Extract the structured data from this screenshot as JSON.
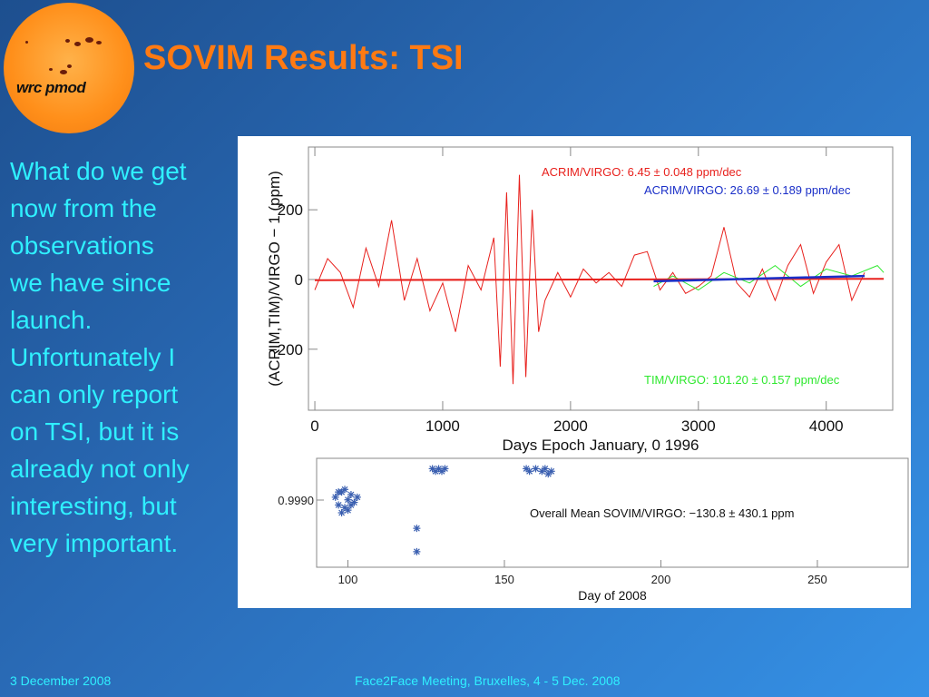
{
  "slide": {
    "title": "SOVIM Results: TSI",
    "logo_text": "wrc pmod",
    "body_lines": [
      "What do we get",
      "now from the",
      "observations",
      "we have since",
      "launch.",
      "Unfortunately I",
      "can only report",
      "on TSI, but it is",
      "already not only",
      "interesting, but",
      "very important."
    ],
    "footer_left": "3 December 2008",
    "footer_center": "Face2Face Meeting, Bruxelles, 4 - 5 Dec. 2008"
  },
  "colors": {
    "title": "#ff7a12",
    "body": "#2ff0ff",
    "acrim_red": "#e8201c",
    "acrim_blue": "#1a2fc8",
    "tim_green": "#2ee82e",
    "sovim_points": "#3a5fb0"
  },
  "chart_data": [
    {
      "type": "line",
      "xlabel": "Days Epoch January, 0 1996",
      "ylabel": "(ACRIM,TIM)/VIRGO − 1 (ppm)",
      "xlim": [
        -50,
        4520
      ],
      "ylim": [
        -375,
        380
      ],
      "x_ticks": [
        0,
        1000,
        2000,
        3000,
        4000
      ],
      "x_tick_labels": [
        "0",
        "1000",
        "2000",
        "3000",
        "4000"
      ],
      "y_ticks": [
        200,
        0,
        -200
      ],
      "y_tick_labels": [
        "200",
        "0",
        "−200"
      ],
      "annotations": [
        {
          "text": "ACRIM/VIRGO:   6.45 ± 0.048 ppm/dec",
          "color": "red"
        },
        {
          "text": "ACRIM/VIRGO:  26.69 ± 0.189 ppm/dec",
          "color": "blue"
        },
        {
          "text": "TIM/VIRGO: 101.20 ± 0.157 ppm/dec",
          "color": "green"
        }
      ],
      "series": [
        {
          "color": "red",
          "x": [
            0,
            100,
            200,
            300,
            400,
            500,
            600,
            700,
            800,
            900,
            1000,
            1100,
            1200,
            1300,
            1400,
            1450,
            1500,
            1550,
            1600,
            1650,
            1700,
            1750,
            1800,
            1900,
            2000,
            2100,
            2200,
            2300,
            2400,
            2500,
            2600,
            2700,
            2800,
            2900,
            3000,
            3100,
            3200,
            3300,
            3400,
            3500,
            3600,
            3700,
            3800,
            3900,
            4000,
            4100,
            4200,
            4300
          ],
          "y": [
            -30,
            60,
            20,
            -80,
            90,
            -20,
            170,
            -60,
            60,
            -90,
            -10,
            -150,
            40,
            -30,
            120,
            -250,
            250,
            -300,
            300,
            -280,
            200,
            -150,
            -60,
            20,
            -50,
            30,
            -10,
            20,
            -20,
            70,
            80,
            -30,
            20,
            -40,
            -20,
            10,
            150,
            -10,
            -50,
            30,
            -60,
            40,
            100,
            -40,
            50,
            100,
            -60,
            20
          ]
        },
        {
          "color": "green",
          "x": [
            2650,
            2800,
            3000,
            3200,
            3400,
            3600,
            3800,
            4000,
            4200,
            4400,
            4450
          ],
          "y": [
            -20,
            10,
            -30,
            20,
            -10,
            40,
            -20,
            30,
            10,
            40,
            20
          ]
        },
        {
          "color": "red",
          "x": [
            0,
            4450
          ],
          "y": [
            -2,
            2
          ]
        },
        {
          "color": "blue",
          "x": [
            2650,
            4300
          ],
          "y": [
            -5,
            10
          ]
        }
      ]
    },
    {
      "type": "scatter",
      "xlabel": "Day of 2008",
      "xlim": [
        90,
        279
      ],
      "x_ticks": [
        100,
        150,
        200,
        250
      ],
      "x_tick_labels": [
        "100",
        "150",
        "200",
        "250"
      ],
      "y_tick_labels": [
        "0.9990"
      ],
      "annotations": [
        {
          "text": "Overall Mean SOVIM/VIRGO:  −130.8 ±  430.1 ppm"
        }
      ],
      "series": [
        {
          "color": "blue",
          "x": [
            96,
            97,
            98,
            99,
            100,
            101,
            102,
            98,
            100,
            103,
            97,
            99,
            101,
            122,
            122,
            127,
            128,
            129,
            130,
            131,
            157,
            158,
            160,
            162,
            163,
            164,
            165
          ],
          "y": [
            0.99897,
            0.99894,
            0.99899,
            0.99893,
            0.99896,
            0.99898,
            0.99895,
            0.99891,
            0.99892,
            0.99897,
            0.99899,
            0.999,
            0.99894,
            0.99885,
            0.99876,
            0.99908,
            0.99907,
            0.99908,
            0.99907,
            0.99908,
            0.99908,
            0.99907,
            0.99908,
            0.99907,
            0.99908,
            0.99906,
            0.99907
          ]
        }
      ]
    }
  ]
}
